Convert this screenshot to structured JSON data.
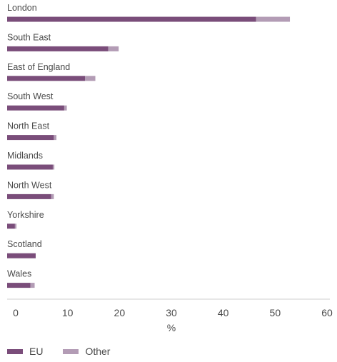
{
  "chart_data": {
    "type": "bar",
    "orientation": "horizontal",
    "stacked": true,
    "categories": [
      "London",
      "South East",
      "East of England",
      "South West",
      "North East",
      "Midlands",
      "North West",
      "Yorkshire",
      "Scotland",
      "Wales"
    ],
    "series": [
      {
        "name": "EU",
        "color": "#7a4d7a",
        "values": [
          48.0,
          19.5,
          15.0,
          11.0,
          9.0,
          8.8,
          8.5,
          1.5,
          5.5,
          4.5
        ]
      },
      {
        "name": "Other",
        "color": "#b39cb5",
        "values": [
          6.5,
          2.0,
          2.0,
          0.5,
          0.5,
          0.3,
          0.5,
          0.3,
          0.0,
          0.8
        ]
      }
    ],
    "xlabel": "%",
    "xlim": [
      0,
      60
    ],
    "xticks": [
      0,
      10,
      20,
      30,
      40,
      50,
      60
    ],
    "grid": false,
    "legend_position": "bottom-left"
  }
}
